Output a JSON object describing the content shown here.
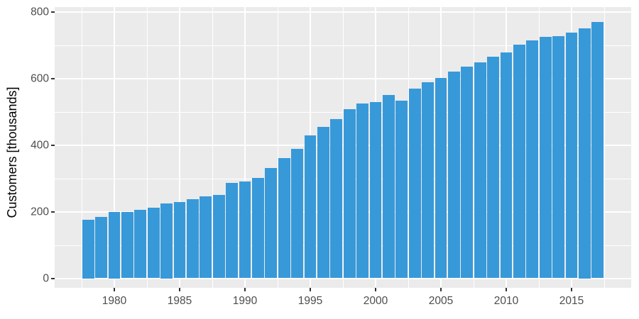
{
  "chart_data": {
    "type": "bar",
    "title": "",
    "xlabel": "",
    "ylabel": "Customers [thousands]",
    "x": [
      1978,
      1979,
      1980,
      1981,
      1982,
      1983,
      1984,
      1985,
      1986,
      1987,
      1988,
      1989,
      1990,
      1991,
      1992,
      1993,
      1994,
      1995,
      1996,
      1997,
      1998,
      1999,
      2000,
      2001,
      2002,
      2003,
      2004,
      2005,
      2006,
      2007,
      2008,
      2009,
      2010,
      2011,
      2012,
      2013,
      2014,
      2015,
      2016,
      2017
    ],
    "values": [
      175,
      185,
      200,
      199,
      206,
      212,
      225,
      229,
      237,
      245,
      251,
      287,
      291,
      302,
      331,
      360,
      388,
      428,
      454,
      478,
      507,
      524,
      529,
      551,
      534,
      569,
      588,
      601,
      621,
      636,
      648,
      665,
      678,
      702,
      714,
      724,
      727,
      737,
      750,
      770
    ],
    "x_tick_labels": [
      "1980",
      "1985",
      "1990",
      "1995",
      "2000",
      "2005",
      "2010",
      "2015"
    ],
    "x_ticks": [
      1980,
      1985,
      1990,
      1995,
      2000,
      2005,
      2010,
      2015
    ],
    "x_minor_ticks": [
      1977.5,
      1982.5,
      1987.5,
      1992.5,
      1997.5,
      2002.5,
      2007.5,
      2012.5,
      2017.5
    ],
    "y_tick_labels": [
      "0",
      "200",
      "400",
      "600",
      "800"
    ],
    "y_ticks": [
      0,
      200,
      400,
      600,
      800
    ],
    "y_minor_ticks": [
      100,
      300,
      500,
      700
    ],
    "ylim": [
      0,
      800
    ],
    "grid": true,
    "legend": false,
    "colors": {
      "bar": "#3899D9",
      "panel_background": "#EBEBEB",
      "gridline": "#FFFFFF",
      "tick_text": "#4D4D4D",
      "axis_title": "#000000",
      "tick_mark": "#333333",
      "page_background": "#FFFFFF"
    }
  }
}
